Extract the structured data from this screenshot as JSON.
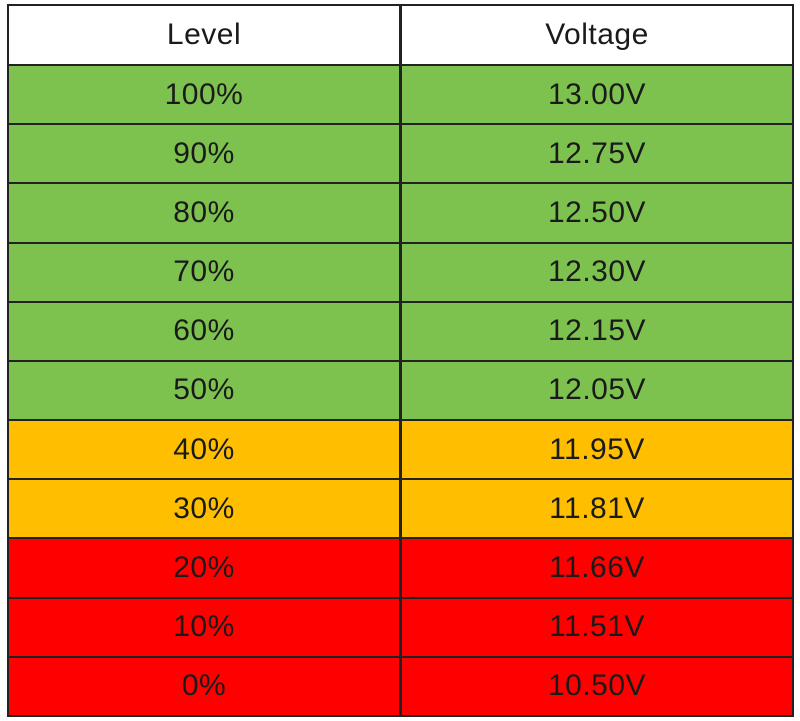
{
  "table": {
    "headers": [
      "Level",
      "Voltage"
    ],
    "rows": [
      {
        "level": "100%",
        "voltage": "13.00V",
        "status": "good"
      },
      {
        "level": "90%",
        "voltage": "12.75V",
        "status": "good"
      },
      {
        "level": "80%",
        "voltage": "12.50V",
        "status": "good"
      },
      {
        "level": "70%",
        "voltage": "12.30V",
        "status": "good"
      },
      {
        "level": "60%",
        "voltage": "12.15V",
        "status": "good"
      },
      {
        "level": "50%",
        "voltage": "12.05V",
        "status": "good"
      },
      {
        "level": "40%",
        "voltage": "11.95V",
        "status": "warning"
      },
      {
        "level": "30%",
        "voltage": "11.81V",
        "status": "warning"
      },
      {
        "level": "20%",
        "voltage": "11.66V",
        "status": "critical"
      },
      {
        "level": "10%",
        "voltage": "11.51V",
        "status": "critical"
      },
      {
        "level": "0%",
        "voltage": "10.50V",
        "status": "critical"
      }
    ]
  },
  "colors": {
    "good": "#7dc24f",
    "warning": "#ffbf00",
    "critical": "#ff0000",
    "header": "#ffffff",
    "border": "#222222"
  }
}
